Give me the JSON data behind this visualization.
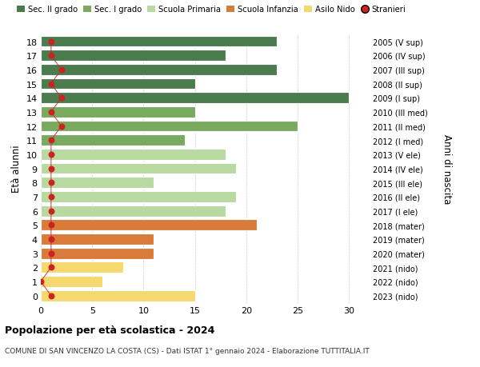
{
  "ages": [
    18,
    17,
    16,
    15,
    14,
    13,
    12,
    11,
    10,
    9,
    8,
    7,
    6,
    5,
    4,
    3,
    2,
    1,
    0
  ],
  "years": [
    "2005 (V sup)",
    "2006 (IV sup)",
    "2007 (III sup)",
    "2008 (II sup)",
    "2009 (I sup)",
    "2010 (III med)",
    "2011 (II med)",
    "2012 (I med)",
    "2013 (V ele)",
    "2014 (IV ele)",
    "2015 (III ele)",
    "2016 (II ele)",
    "2017 (I ele)",
    "2018 (mater)",
    "2019 (mater)",
    "2020 (mater)",
    "2021 (nido)",
    "2022 (nido)",
    "2023 (nido)"
  ],
  "values": [
    23,
    18,
    23,
    15,
    30,
    15,
    25,
    14,
    18,
    19,
    11,
    19,
    18,
    21,
    11,
    11,
    8,
    6,
    15
  ],
  "stranieri": [
    1,
    1,
    2,
    1,
    2,
    1,
    2,
    1,
    1,
    1,
    1,
    1,
    1,
    1,
    1,
    1,
    1,
    0,
    1
  ],
  "bar_colors": [
    "#4a7c4e",
    "#4a7c4e",
    "#4a7c4e",
    "#4a7c4e",
    "#4a7c4e",
    "#7aaa5f",
    "#7aaa5f",
    "#7aaa5f",
    "#b8d9a0",
    "#b8d9a0",
    "#b8d9a0",
    "#b8d9a0",
    "#b8d9a0",
    "#d97b3a",
    "#d97b3a",
    "#d97b3a",
    "#f5d86e",
    "#f5d86e",
    "#f5d86e"
  ],
  "legend_labels": [
    "Sec. II grado",
    "Sec. I grado",
    "Scuola Primaria",
    "Scuola Infanzia",
    "Asilo Nido",
    "Stranieri"
  ],
  "legend_colors": [
    "#4a7c4e",
    "#7aaa5f",
    "#b8d9a0",
    "#d97b3a",
    "#f5d86e",
    "#cc2222"
  ],
  "stranieri_color": "#cc2222",
  "line_color": "#cc2222",
  "title": "Popolazione per età scolastica - 2024",
  "subtitle": "COMUNE DI SAN VINCENZO LA COSTA (CS) - Dati ISTAT 1° gennaio 2024 - Elaborazione TUTTITALIA.IT",
  "ylabel": "Età alunni",
  "ylabel2": "Anni di nascita",
  "xlabel_vals": [
    0,
    5,
    10,
    15,
    20,
    25,
    30
  ],
  "xlim": [
    0,
    32
  ],
  "ylim": [
    -0.5,
    18.5
  ],
  "background_color": "#ffffff",
  "grid_color": "#cccccc"
}
